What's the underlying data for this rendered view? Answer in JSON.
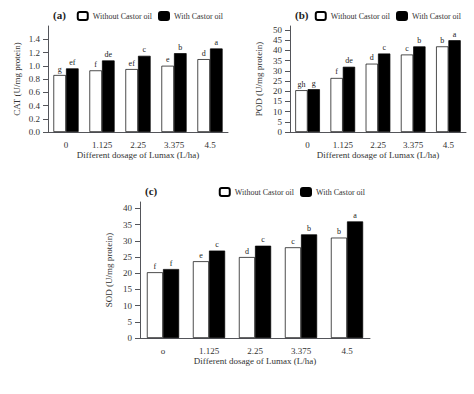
{
  "chart_data": [
    {
      "type": "bar",
      "title": "(a)",
      "categories": [
        "0",
        "1.125",
        "2.25",
        "3.375",
        "4.5"
      ],
      "xlabel": "Different dosage of Lumax (L/ha)",
      "ylabel": "CAT (U/mg protein)",
      "ylim": [
        0,
        1.6
      ],
      "yticks": [
        {
          "value": 0,
          "label": "0.0"
        },
        0.2,
        0.4,
        0.6,
        0.8,
        {
          "value": 1.0,
          "label": "1.0"
        },
        1.2,
        1.4
      ],
      "grid": false,
      "legend": "upper right",
      "series": [
        {
          "name": "Without Castor oil",
          "color": "white",
          "values": [
            0.86,
            0.93,
            0.95,
            1.0,
            1.1
          ],
          "annotations": [
            "g",
            "f",
            "ef",
            "e",
            "d"
          ]
        },
        {
          "name": "With Castor oil",
          "color": "black",
          "values": [
            0.96,
            1.08,
            1.15,
            1.19,
            1.26
          ],
          "annotations": [
            "ef",
            "de",
            "c",
            "b",
            "a"
          ]
        }
      ]
    },
    {
      "type": "bar",
      "title": "(b)",
      "categories": [
        "0",
        "1.125",
        "2.25",
        "3.375",
        "4.5"
      ],
      "xlabel": "Different dosage of Lumax (L/ha)",
      "ylabel": "POD (U/mg protein)",
      "ylim": [
        0,
        52
      ],
      "yticks": [
        0,
        5,
        10,
        15,
        20,
        25,
        30,
        35,
        40,
        45,
        50
      ],
      "grid": false,
      "legend": "upper right",
      "series": [
        {
          "name": "Without Castor oil",
          "color": "white",
          "values": [
            20.5,
            26.5,
            33.5,
            38.0,
            42.0
          ],
          "annotations": [
            "gh",
            "f",
            "d",
            "c",
            "b"
          ]
        },
        {
          "name": "With Castor oil",
          "color": "black",
          "values": [
            21.0,
            32.0,
            38.5,
            42.0,
            45.0
          ],
          "annotations": [
            "g",
            "de",
            "c",
            "b",
            "a"
          ]
        }
      ]
    },
    {
      "type": "bar",
      "title": "(c)",
      "categories": [
        "o",
        "1.125",
        "2.25",
        "3.375",
        "4.5"
      ],
      "xlabel": "Different dosage of Lumax (L/ha)",
      "ylabel": "SOD (U/mg protein)",
      "ylim": [
        0,
        42
      ],
      "yticks": [
        0,
        5,
        10,
        15,
        20,
        25,
        30,
        35,
        40
      ],
      "grid": false,
      "legend": "upper right",
      "series": [
        {
          "name": "Without Castor oil",
          "color": "white",
          "values": [
            20.3,
            23.7,
            25.0,
            28.0,
            31.0
          ],
          "annotations": [
            "f",
            "e",
            "d",
            "c",
            "b"
          ]
        },
        {
          "name": "With Castor oil",
          "color": "black",
          "values": [
            21.3,
            27.0,
            28.5,
            32.0,
            36.0
          ],
          "annotations": [
            "f",
            "c",
            "c",
            "b",
            "a"
          ]
        }
      ]
    }
  ]
}
